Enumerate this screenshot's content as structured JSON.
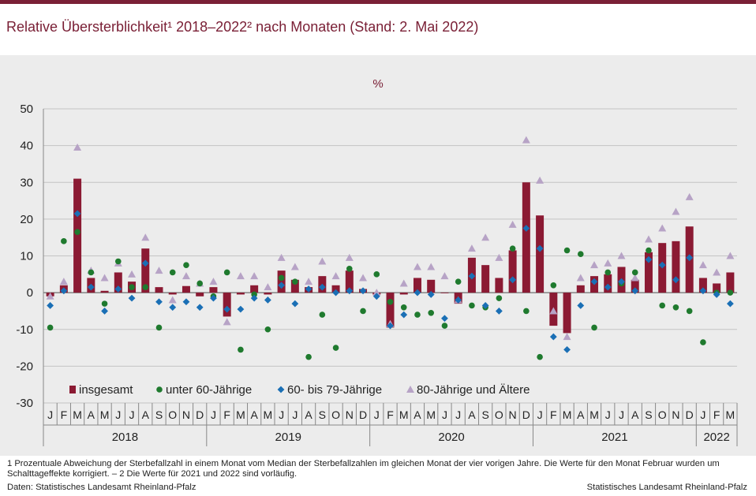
{
  "title": "Relative Übersterblichkeit¹ 2018–2022² nach Monaten (Stand: 2. Mai 2022)",
  "footnote": "1 Prozentuale Abweichung der Sterbefallzahl in einem Monat vom Median der Sterbefallzahlen im gleichen Monat der vier vorigen Jahre. Die Werte für den Monat Februar wurden um Schalttageffekte korrigiert. – 2 Die Werte für 2021 und 2022 sind vorläufig.",
  "source_left": "Daten: Statistisches Landesamt Rheinland-Pfalz",
  "source_right": "Statistisches Landesamt Rheinland-Pfalz",
  "colors": {
    "brand": "#7a2036",
    "insgesamt": "#8b1a33",
    "unter60": "#1f7a2e",
    "60bis79": "#1a6fb5",
    "80plus": "#b7a3c6",
    "panel": "#ececec"
  },
  "chart_data": {
    "type": "bar",
    "unit_label": "%",
    "ylim": [
      -30,
      50
    ],
    "yticks": [
      -30,
      -20,
      -10,
      0,
      10,
      20,
      30,
      40,
      50
    ],
    "grid": true,
    "legend_position": "bottom-left",
    "years": [
      {
        "label": "2018",
        "months": 12
      },
      {
        "label": "2019",
        "months": 12
      },
      {
        "label": "2020",
        "months": 12
      },
      {
        "label": "2021",
        "months": 12
      },
      {
        "label": "2022",
        "months": 3
      }
    ],
    "categories": [
      "J",
      "F",
      "M",
      "A",
      "M",
      "J",
      "J",
      "A",
      "S",
      "O",
      "N",
      "D",
      "J",
      "F",
      "M",
      "A",
      "M",
      "J",
      "J",
      "A",
      "S",
      "O",
      "N",
      "D",
      "J",
      "F",
      "M",
      "A",
      "M",
      "J",
      "J",
      "A",
      "S",
      "O",
      "N",
      "D",
      "J",
      "F",
      "M",
      "A",
      "M",
      "J",
      "J",
      "A",
      "S",
      "O",
      "N",
      "D",
      "J",
      "F",
      "M"
    ],
    "series": [
      {
        "name": "insgesamt",
        "marker": "bar",
        "values": [
          -1,
          2,
          31,
          4,
          0.5,
          5.5,
          3,
          12,
          1.5,
          -0.5,
          1.8,
          -1,
          1.5,
          -6.5,
          -0.5,
          2,
          -0.5,
          6,
          3.5,
          1.5,
          4.5,
          2,
          6,
          1,
          -0.5,
          -9.5,
          -0.5,
          4,
          3.5,
          0,
          -3,
          9.5,
          7.5,
          4,
          11.5,
          30,
          21,
          -9,
          -11,
          2,
          4.5,
          5,
          7,
          3.5,
          11,
          13.5,
          14,
          18,
          4,
          2.5,
          5.5
        ]
      },
      {
        "name": "unter 60-Jährige",
        "marker": "circle",
        "values": [
          -9.5,
          14,
          16.5,
          5.5,
          -3,
          8.5,
          1.5,
          1.5,
          -9.5,
          5.5,
          7.5,
          2.5,
          -1,
          5.5,
          -15.5,
          -0.5,
          -10,
          4,
          3,
          -17.5,
          -6,
          -15,
          6.5,
          -5,
          5,
          -2.5,
          -4,
          -6,
          -5.5,
          -9,
          3,
          -3.5,
          -4,
          -1.5,
          12,
          -5,
          -17.5,
          2,
          11.5,
          10.5,
          -9.5,
          5.5,
          2.5,
          5.5,
          11.5,
          -3.5,
          -4,
          -5,
          -13.5,
          0,
          0
        ]
      },
      {
        "name": "60- bis 79-Jährige",
        "marker": "diamond",
        "values": [
          -3.5,
          0.5,
          21.5,
          1.5,
          -5,
          1,
          -1.5,
          8,
          -2.5,
          -4,
          -2.5,
          -4,
          -1.5,
          -4.5,
          -4.5,
          -1.5,
          -2,
          2,
          -3,
          1,
          1.5,
          0,
          0.5,
          0.5,
          -1,
          -9,
          -6,
          0,
          -0.5,
          -7,
          -2,
          4.5,
          -3.5,
          -5,
          3.5,
          17.5,
          12,
          -12,
          -15.5,
          -3.5,
          3,
          1.5,
          3,
          0.5,
          9,
          7.5,
          3.5,
          9.5,
          0.5,
          -0.5,
          -3
        ]
      },
      {
        "name": "80-Jährige und Ältere",
        "marker": "triangle",
        "values": [
          -1,
          3,
          39.5,
          6,
          4,
          8,
          5,
          15,
          6,
          -2,
          4.5,
          2.5,
          3,
          -8,
          4.5,
          4.5,
          1.5,
          9.5,
          7,
          3,
          8.5,
          4.5,
          9.5,
          4,
          0,
          -8.5,
          2.5,
          7,
          7,
          4.5,
          -2,
          12,
          15,
          9.5,
          18.5,
          41.5,
          30.5,
          -5,
          -12,
          4,
          7.5,
          8,
          10,
          4,
          14.5,
          17.5,
          22,
          26,
          7.5,
          5.5,
          10
        ]
      }
    ]
  }
}
